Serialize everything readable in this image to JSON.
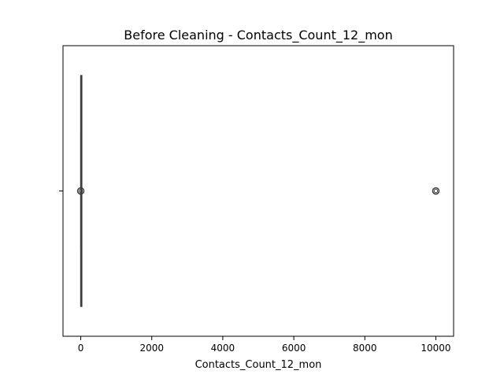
{
  "chart_data": {
    "type": "box",
    "title": "Before Cleaning - Contacts_Count_12_mon",
    "xlabel": "Contacts_Count_12_mon",
    "ylabel": "",
    "xlim": [
      -500,
      10500
    ],
    "x_ticks": [
      0,
      2000,
      4000,
      6000,
      8000,
      10000
    ],
    "x_tick_labels": [
      "0",
      "2000",
      "4000",
      "6000",
      "8000",
      "10000"
    ],
    "orientation": "horizontal",
    "grid": false,
    "box": {
      "whisker_low": 0,
      "q1": 2,
      "median": 2,
      "q3": 3,
      "whisker_high": 6
    },
    "outliers": [
      0,
      10000
    ],
    "colors": {
      "box_face": "#1f77b4",
      "box_edge": "#3d3d3d",
      "axes": "#000000",
      "outlier_edge": "#3d3d3d"
    }
  }
}
